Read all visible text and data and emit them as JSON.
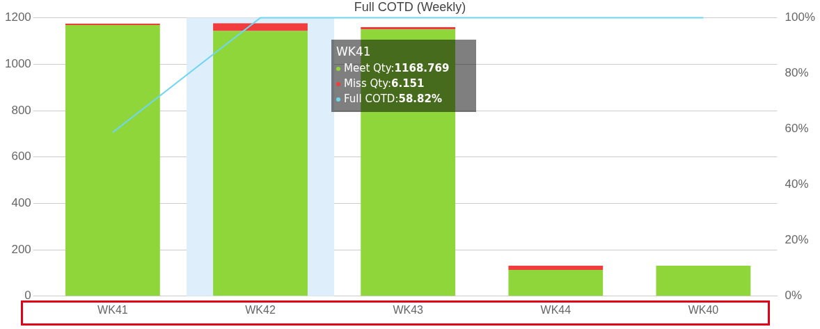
{
  "chart_data": {
    "type": "bar",
    "title": "Full COTD (Weekly)",
    "categories": [
      "WK41",
      "WK42",
      "WK43",
      "WK44",
      "WK40"
    ],
    "stacked": true,
    "grid": "y",
    "legend": false,
    "series": [
      {
        "color": "#8ed63a",
        "values": [
          1168.769,
          1143,
          1150,
          113,
          131
        ]
      },
      {
        "color": "#f03c3c",
        "values": [
          6.151,
          33,
          10,
          18,
          0
        ]
      },
      {
        "type": "line",
        "axis": "y2",
        "color": "#6fd6f0",
        "values": [
          58.82,
          100,
          100,
          100,
          100
        ]
      }
    ],
    "annotations": [
      "WK41",
      "Meet Qty:1168.769",
      "Miss Qty:6.151",
      "Full COTD:58.82%"
    ],
    "ylim": [
      0,
      1200
    ],
    "yticks": [
      0,
      200,
      400,
      600,
      800,
      1000,
      1200
    ],
    "y2lim": [
      0,
      100
    ],
    "y2ticks": [
      {
        "value": 0,
        "label": "0%"
      },
      {
        "value": 20,
        "label": "20%"
      },
      {
        "value": 40,
        "label": "40%"
      },
      {
        "value": 60,
        "label": "60%"
      },
      {
        "value": 80,
        "label": "80%"
      },
      {
        "value": 100,
        "label": "100%"
      }
    ],
    "bands": [
      {
        "axis": "x",
        "from": "WK42",
        "to": "WK42",
        "color": "#dfeefb"
      }
    ]
  }
}
